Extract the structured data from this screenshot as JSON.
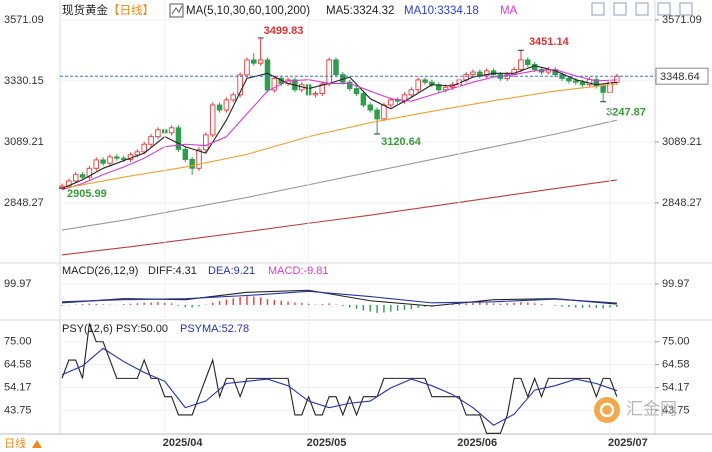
{
  "title": "现货黄金",
  "period": "【日线】",
  "period_label": "日线",
  "watermark": "汇金网",
  "chart_data": [
    {
      "type": "candlestick",
      "legend_title": "MA(5,10,30,60,100,200)",
      "legend_extra": "MA",
      "categories": [
        null,
        null,
        null,
        null,
        null,
        null,
        null,
        null,
        null,
        null,
        null,
        null,
        null,
        null,
        null,
        "2025/04",
        null,
        null,
        null,
        null,
        null,
        null,
        null,
        null,
        null,
        null,
        null,
        null,
        null,
        null,
        null,
        null,
        null,
        null,
        null,
        null,
        "2025/05",
        null,
        null,
        null,
        null,
        null,
        null,
        null,
        null,
        null,
        null,
        null,
        null,
        null,
        null,
        null,
        null,
        null,
        null,
        null,
        null,
        null,
        "2025/06",
        null,
        null,
        null,
        null,
        null,
        null,
        null,
        null,
        null,
        null,
        null,
        null,
        null,
        null,
        null,
        null,
        null,
        null,
        null,
        null,
        null,
        "2025/07",
        null
      ],
      "open": [
        2910,
        2915,
        2935,
        2960,
        2950,
        2985,
        3018,
        3005,
        3030,
        3025,
        3020,
        3038,
        3050,
        3080,
        3110,
        3137,
        3125,
        3145,
        3060,
        3020,
        2985,
        3058,
        3117,
        3235,
        3215,
        3255,
        3275,
        3354,
        3413,
        3400,
        3413,
        3294,
        3340,
        3320,
        3334,
        3295,
        3315,
        3275,
        3280,
        3318,
        3413,
        3355,
        3325,
        3300,
        3280,
        3235,
        3215,
        3180,
        3235,
        3255,
        3250,
        3275,
        3295,
        3334,
        3325,
        3315,
        3295,
        3305,
        3315,
        3334,
        3355,
        3365,
        3350,
        3370,
        3355,
        3340,
        3355,
        3375,
        3413,
        3395,
        3375,
        3365,
        3375,
        3355,
        3340,
        3330,
        3325,
        3315,
        3335,
        3310,
        3285,
        3325
      ],
      "high": [
        2925,
        2945,
        2970,
        2970,
        2995,
        3028,
        3028,
        3040,
        3040,
        3035,
        3048,
        3060,
        3090,
        3120,
        3147,
        3147,
        3155,
        3155,
        3070,
        3030,
        3068,
        3127,
        3245,
        3245,
        3265,
        3285,
        3364,
        3423,
        3440,
        3499.83,
        3423,
        3350,
        3350,
        3344,
        3344,
        3325,
        3325,
        3290,
        3328,
        3423,
        3423,
        3365,
        3335,
        3310,
        3290,
        3245,
        3225,
        3245,
        3265,
        3265,
        3285,
        3305,
        3344,
        3344,
        3335,
        3325,
        3315,
        3325,
        3344,
        3365,
        3375,
        3375,
        3380,
        3380,
        3365,
        3365,
        3385,
        3451.14,
        3423,
        3405,
        3385,
        3385,
        3385,
        3365,
        3350,
        3340,
        3335,
        3345,
        3345,
        3320,
        3335,
        3358
      ],
      "low": [
        2905.99,
        2905,
        2925,
        2940,
        2940,
        2975,
        2995,
        2995,
        3015,
        3010,
        3010,
        3028,
        3040,
        3070,
        3100,
        3115,
        3115,
        3050,
        3010,
        2960,
        2975,
        3048,
        3107,
        3205,
        3205,
        3245,
        3265,
        3344,
        3390,
        3390,
        3284,
        3284,
        3310,
        3310,
        3285,
        3285,
        3265,
        3265,
        3270,
        3308,
        3345,
        3315,
        3290,
        3270,
        3225,
        3205,
        3120.64,
        3170,
        3225,
        3240,
        3240,
        3265,
        3285,
        3315,
        3305,
        3285,
        3285,
        3295,
        3305,
        3324,
        3345,
        3340,
        3340,
        3345,
        3330,
        3330,
        3345,
        3365,
        3385,
        3365,
        3355,
        3355,
        3345,
        3330,
        3320,
        3315,
        3305,
        3305,
        3300,
        3247.87,
        3275,
        3315
      ],
      "close": [
        2915,
        2935,
        2960,
        2950,
        2985,
        3018,
        3005,
        3030,
        3025,
        3020,
        3038,
        3050,
        3080,
        3110,
        3137,
        3125,
        3145,
        3060,
        3020,
        2985,
        3058,
        3117,
        3235,
        3215,
        3255,
        3275,
        3354,
        3413,
        3400,
        3413,
        3294,
        3340,
        3320,
        3334,
        3295,
        3315,
        3275,
        3280,
        3318,
        3413,
        3355,
        3325,
        3300,
        3280,
        3235,
        3215,
        3180,
        3235,
        3255,
        3250,
        3275,
        3295,
        3334,
        3325,
        3315,
        3295,
        3305,
        3315,
        3334,
        3355,
        3365,
        3350,
        3370,
        3355,
        3340,
        3355,
        3375,
        3413,
        3395,
        3375,
        3365,
        3375,
        3355,
        3340,
        3330,
        3325,
        3315,
        3335,
        3310,
        3285,
        3325,
        3348.64
      ],
      "up_color": "#e8393b",
      "down_color": "#2e9e4b",
      "series": [
        {
          "name": "MA5:3324.32",
          "color": "#222222",
          "x": [
            0,
            3,
            6,
            9,
            12,
            15,
            18,
            21,
            24,
            27,
            30,
            33,
            36,
            39,
            42,
            45,
            48,
            51,
            54,
            57,
            60,
            63,
            66,
            69,
            72,
            75,
            78,
            81
          ],
          "values": [
            2905,
            2940,
            2985,
            3015,
            3045,
            3110,
            3070,
            3045,
            3175,
            3340,
            3360,
            3320,
            3300,
            3320,
            3345,
            3260,
            3220,
            3265,
            3315,
            3310,
            3345,
            3360,
            3360,
            3390,
            3370,
            3335,
            3315,
            3324.32
          ]
        },
        {
          "name": "MA10:3334.18",
          "color": "#d63ad6",
          "x": [
            0,
            3,
            6,
            9,
            12,
            15,
            18,
            21,
            24,
            27,
            30,
            33,
            36,
            39,
            42,
            45,
            48,
            51,
            54,
            57,
            60,
            63,
            66,
            69,
            72,
            75,
            78,
            81
          ],
          "values": [
            2900,
            2925,
            2960,
            2990,
            3025,
            3070,
            3080,
            3075,
            3110,
            3200,
            3290,
            3330,
            3335,
            3320,
            3320,
            3290,
            3260,
            3250,
            3275,
            3300,
            3325,
            3345,
            3355,
            3370,
            3375,
            3350,
            3330,
            3334.18
          ]
        },
        {
          "color": "#f0a030",
          "x": [
            0,
            9,
            18,
            27,
            36,
            45,
            54,
            63,
            72,
            81
          ],
          "values": [
            2905,
            2950,
            2990,
            3040,
            3110,
            3165,
            3210,
            3252,
            3290,
            3318
          ]
        },
        {
          "color": "#9a9a9a",
          "x": [
            0,
            9,
            18,
            27,
            36,
            45,
            54,
            63,
            72,
            81
          ],
          "values": [
            2741,
            2780,
            2825,
            2870,
            2920,
            2970,
            3020,
            3070,
            3120,
            3175
          ]
        },
        {
          "color": "#b84040",
          "x": [
            0,
            9,
            18,
            27,
            36,
            45,
            54,
            63,
            72,
            81
          ],
          "values": [
            2643,
            2672,
            2703,
            2735,
            2768,
            2800,
            2835,
            2870,
            2905,
            2939
          ]
        }
      ],
      "ylim": [
        2615,
        3618
      ],
      "yticks": [
        3571.09,
        3330.15,
        3089.21,
        2848.27
      ]
    },
    {
      "type": "macd",
      "title": "MACD(26,12,9)",
      "series": [
        {
          "name": "DIFF:4.31",
          "color": "#222222",
          "x": [
            0,
            9,
            18,
            27,
            36,
            45,
            54,
            63,
            72,
            81
          ],
          "values": [
            10,
            30,
            25,
            60,
            70,
            20,
            -5,
            25,
            30,
            4.31
          ]
        },
        {
          "name": "DEA:9.21",
          "color": "#2233aa",
          "x": [
            0,
            9,
            18,
            27,
            36,
            45,
            54,
            63,
            72,
            81
          ],
          "values": [
            15,
            25,
            30,
            45,
            65,
            40,
            10,
            15,
            28,
            9.21
          ]
        }
      ],
      "histogram": {
        "name": "MACD:-9.81",
        "up_color": "#e8393b",
        "down_color": "#2e9e4b",
        "values": [
          -4,
          -2,
          2,
          4,
          6,
          5,
          3,
          2,
          1,
          4,
          6,
          8,
          10,
          12,
          14,
          10,
          8,
          -4,
          -10,
          -12,
          -6,
          2,
          10,
          18,
          26,
          32,
          38,
          42,
          40,
          36,
          28,
          24,
          20,
          16,
          12,
          10,
          6,
          2,
          4,
          8,
          2,
          -6,
          -12,
          -18,
          -26,
          -32,
          -38,
          -36,
          -32,
          -28,
          -24,
          -20,
          -14,
          -10,
          -8,
          -4,
          2,
          4,
          6,
          8,
          10,
          12,
          10,
          8,
          6,
          8,
          10,
          14,
          12,
          8,
          4,
          0,
          -4,
          -8,
          -10,
          -12,
          -14,
          -12,
          -14,
          -16,
          -12,
          -9.81
        ]
      },
      "ylim": [
        -62,
        190
      ],
      "yticks": [
        99.97
      ]
    },
    {
      "type": "line",
      "title": "PSY(12,6)",
      "series": [
        {
          "name": "PSY:50.00",
          "color": "#222222",
          "values": [
            58.33,
            66.67,
            66.67,
            58.33,
            83.33,
            75,
            75,
            66.67,
            58.33,
            58.33,
            58.33,
            58.33,
            66.67,
            58.33,
            58.33,
            50,
            50,
            41.67,
            41.67,
            41.67,
            50,
            58.33,
            66.67,
            50,
            58.33,
            58.33,
            50,
            58.33,
            58.33,
            58.33,
            58.33,
            58.33,
            58.33,
            58.33,
            41.67,
            41.67,
            50,
            41.67,
            41.67,
            50,
            50,
            41.67,
            50,
            41.67,
            50,
            50,
            50,
            58.33,
            58.33,
            58.33,
            58.33,
            58.33,
            58.33,
            58.33,
            50,
            50,
            50,
            50,
            50,
            41.67,
            41.67,
            41.67,
            33.33,
            33.33,
            33.33,
            41.67,
            58.33,
            58.33,
            50,
            58.33,
            50,
            58.33,
            58.33,
            58.33,
            58.33,
            58.33,
            58.33,
            58.33,
            50,
            58.33,
            58.33,
            50
          ]
        },
        {
          "name": "PSYMA:52.78",
          "color": "#2233aa",
          "x": [
            0,
            3,
            6,
            9,
            12,
            15,
            18,
            21,
            24,
            27,
            30,
            33,
            36,
            39,
            42,
            45,
            48,
            51,
            54,
            57,
            60,
            63,
            66,
            69,
            72,
            75,
            78,
            81
          ],
          "values": [
            60,
            64,
            72,
            66,
            61,
            57,
            45,
            48,
            56,
            57,
            58,
            55,
            48,
            45,
            47,
            48,
            54,
            58,
            55,
            51,
            45,
            37,
            42,
            53,
            55,
            58,
            56,
            52.78
          ]
        }
      ],
      "ylim": [
        33,
        84
      ],
      "yticks": [
        {
          "value": 75,
          "label": "75.00"
        },
        64.58,
        54.17,
        43.75
      ]
    }
  ]
}
